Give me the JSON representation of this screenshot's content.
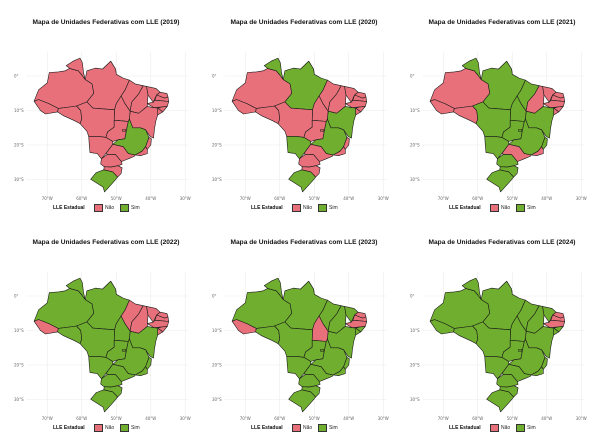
{
  "colors": {
    "nao": "#e8707a",
    "sim": "#6fae2e",
    "border": "#1a1a1a",
    "grid": "#ececec"
  },
  "axes": {
    "lat_ticks": [
      "0°",
      "10°S",
      "20°S",
      "30°S"
    ],
    "lon_ticks": [
      "70°W",
      "60°W",
      "50°W",
      "40°W",
      "30°W"
    ]
  },
  "legend": {
    "title": "LLE Estadual",
    "nao": "Não",
    "sim": "Sim"
  },
  "panels": [
    {
      "title": "Mapa de Unidades Federativas com LLE (2019)",
      "sim_states": [
        "MG",
        "RS"
      ]
    },
    {
      "title": "Mapa de Unidades Federativas com LLE (2020)",
      "sim_states": [
        "RR",
        "AP",
        "PA",
        "BA",
        "MS",
        "RS",
        "MG"
      ]
    },
    {
      "title": "Mapa de Unidades Federativas com LLE (2021)",
      "sim_states": [
        "RR",
        "AP",
        "PA",
        "TO",
        "BA",
        "MT",
        "GO",
        "DF",
        "MS",
        "MG",
        "ES",
        "PR",
        "SC",
        "RS",
        "MA"
      ]
    },
    {
      "title": "Mapa de Unidades Federativas com LLE (2022)",
      "sim_states": [
        "AM",
        "RR",
        "RO",
        "MT",
        "PA",
        "AP",
        "MS",
        "MG",
        "GO",
        "DF",
        "TO",
        "SP",
        "PR",
        "SC",
        "RS",
        "BA",
        "ES",
        "RJ"
      ]
    },
    {
      "title": "Mapa de Unidades Federativas com LLE (2023)",
      "sim_states": [
        "AM",
        "RR",
        "RO",
        "MT",
        "PA",
        "AP",
        "MS",
        "MG",
        "GO",
        "DF",
        "SP",
        "PR",
        "SC",
        "RS",
        "BA",
        "ES",
        "RJ",
        "MA",
        "PI",
        "CE",
        "SE",
        "AL"
      ]
    },
    {
      "title": "Mapa de Unidades Federativas com LLE (2024)",
      "sim_states": [
        "AM",
        "RR",
        "RO",
        "MT",
        "PA",
        "AP",
        "AC",
        "MS",
        "MG",
        "GO",
        "DF",
        "SP",
        "PR",
        "SC",
        "RS",
        "BA",
        "ES",
        "RJ",
        "MA",
        "PI",
        "CE",
        "SE",
        "AL",
        "TO"
      ]
    }
  ]
}
